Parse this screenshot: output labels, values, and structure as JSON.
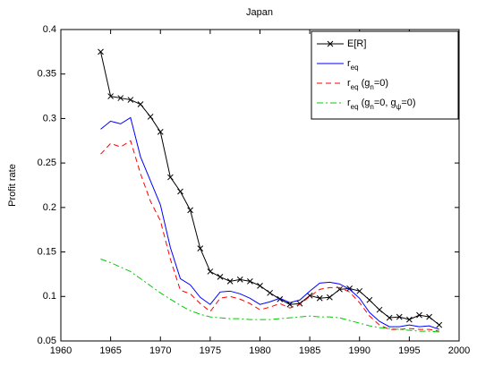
{
  "chart_data": {
    "type": "line",
    "title": "Japan",
    "y_label": "Profit rate",
    "x": [
      1964,
      1965,
      1966,
      1967,
      1968,
      1969,
      1970,
      1971,
      1972,
      1973,
      1974,
      1975,
      1976,
      1977,
      1978,
      1979,
      1980,
      1981,
      1982,
      1983,
      1984,
      1985,
      1986,
      1987,
      1988,
      1989,
      1990,
      1991,
      1992,
      1993,
      1994,
      1995,
      1996,
      1997,
      1998
    ],
    "series": [
      {
        "name": "E[R]",
        "color": "#000000",
        "linestyle": "solid",
        "marker": "x",
        "values": [
          0.375,
          0.325,
          0.323,
          0.321,
          0.316,
          0.302,
          0.285,
          0.234,
          0.218,
          0.197,
          0.154,
          0.128,
          0.122,
          0.117,
          0.119,
          0.117,
          0.112,
          0.104,
          0.097,
          0.091,
          0.092,
          0.101,
          0.098,
          0.099,
          0.108,
          0.109,
          0.106,
          0.096,
          0.085,
          0.076,
          0.077,
          0.074,
          0.079,
          0.077,
          0.068
        ]
      },
      {
        "name": "r_{eq}",
        "color": "#0000ff",
        "linestyle": "solid",
        "values": [
          0.288,
          0.297,
          0.294,
          0.301,
          0.257,
          0.23,
          0.203,
          0.155,
          0.12,
          0.113,
          0.099,
          0.091,
          0.105,
          0.106,
          0.103,
          0.098,
          0.091,
          0.094,
          0.098,
          0.093,
          0.096,
          0.106,
          0.115,
          0.116,
          0.114,
          0.108,
          0.098,
          0.082,
          0.072,
          0.066,
          0.066,
          0.068,
          0.066,
          0.067,
          0.063
        ]
      },
      {
        "name": "r_{eq} (g_{n}=0)",
        "color": "#ff0000",
        "linestyle": "dashed",
        "values": [
          0.26,
          0.272,
          0.268,
          0.275,
          0.238,
          0.207,
          0.185,
          0.142,
          0.107,
          0.103,
          0.092,
          0.083,
          0.098,
          0.1,
          0.097,
          0.092,
          0.085,
          0.088,
          0.092,
          0.087,
          0.091,
          0.1,
          0.108,
          0.11,
          0.11,
          0.105,
          0.093,
          0.078,
          0.068,
          0.063,
          0.063,
          0.064,
          0.063,
          0.063,
          0.061
        ]
      },
      {
        "name": "r_{eq} (g_{n}=0, g_{ψ}=0)",
        "color": "#00cc00",
        "linestyle": "dashdot",
        "values": [
          0.142,
          0.138,
          0.133,
          0.128,
          0.12,
          0.112,
          0.104,
          0.097,
          0.09,
          0.084,
          0.08,
          0.077,
          0.076,
          0.075,
          0.075,
          0.074,
          0.074,
          0.074,
          0.075,
          0.076,
          0.077,
          0.078,
          0.077,
          0.077,
          0.076,
          0.073,
          0.07,
          0.067,
          0.065,
          0.064,
          0.063,
          0.062,
          0.061,
          0.061,
          0.06
        ]
      }
    ],
    "xlim": [
      1960,
      2000
    ],
    "xticks": [
      1960,
      1965,
      1970,
      1975,
      1980,
      1985,
      1990,
      1995,
      2000
    ],
    "ylim": [
      0.05,
      0.4
    ],
    "yticks": [
      0.05,
      0.1,
      0.15,
      0.2,
      0.25,
      0.3,
      0.35,
      0.4
    ],
    "grid": false,
    "legend": "upper right"
  }
}
